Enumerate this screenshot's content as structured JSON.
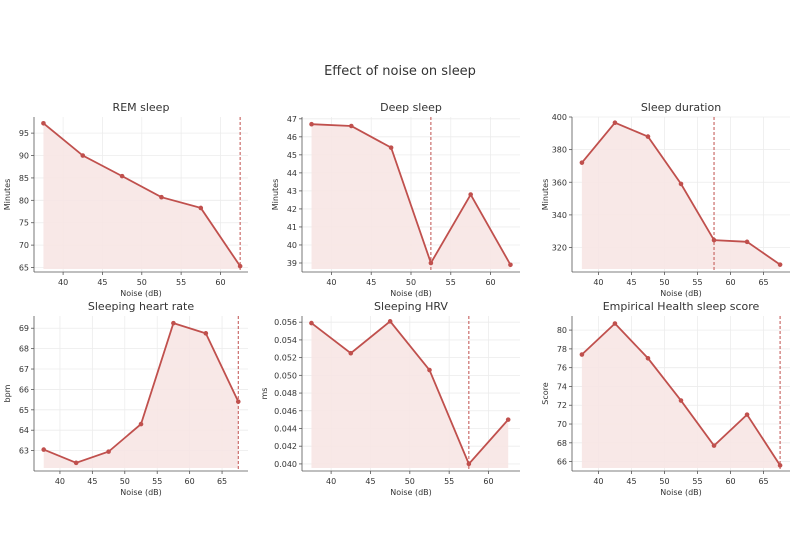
{
  "suptitle": "Effect of noise on sleep",
  "colors": {
    "line": "#c0504d",
    "fill": "#f7e6e4",
    "axis": "#555555",
    "text": "#333333"
  },
  "chart_data": [
    {
      "type": "area",
      "title": "REM sleep",
      "xlabel": "Noise (dB)",
      "ylabel": "Minutes",
      "x": [
        37.5,
        42.5,
        47.5,
        52.5,
        57.5,
        62.5
      ],
      "series": [
        {
          "values": [
            97.2,
            90.0,
            85.4,
            80.7,
            78.3,
            65.3
          ]
        }
      ],
      "threshold_x": 62.5,
      "xlim": [
        36.3,
        63.5
      ],
      "ylim": [
        64.0,
        98.6
      ],
      "xticks": [
        40,
        45,
        50,
        55,
        60
      ],
      "yticks": [
        65,
        70,
        75,
        80,
        85,
        90,
        95
      ],
      "grid": true
    },
    {
      "type": "area",
      "title": "Deep sleep",
      "xlabel": "Noise (dB)",
      "ylabel": "Minutes",
      "x": [
        37.5,
        42.5,
        47.5,
        52.5,
        57.5,
        62.5
      ],
      "series": [
        {
          "values": [
            46.7,
            46.6,
            45.4,
            39.0,
            42.8,
            38.9
          ]
        }
      ],
      "threshold_x": 52.5,
      "xlim": [
        36.3,
        63.7
      ],
      "ylim": [
        38.5,
        47.1
      ],
      "xticks": [
        40,
        45,
        50,
        55,
        60
      ],
      "yticks": [
        39,
        40,
        41,
        42,
        43,
        44,
        45,
        46,
        47
      ],
      "grid": true
    },
    {
      "type": "area",
      "title": "Sleep duration",
      "xlabel": "Noise (dB)",
      "ylabel": "Minutes",
      "x": [
        37.5,
        42.5,
        47.5,
        52.5,
        57.5,
        62.5,
        67.5
      ],
      "series": [
        {
          "values": [
            372,
            396.5,
            388,
            359,
            324.5,
            323.5,
            309.5
          ]
        }
      ],
      "threshold_x": 57.5,
      "xlim": [
        36.0,
        69.0
      ],
      "ylim": [
        305,
        400
      ],
      "xticks": [
        40,
        45,
        50,
        55,
        60,
        65
      ],
      "yticks": [
        320,
        340,
        360,
        380,
        400
      ],
      "grid": true
    },
    {
      "type": "area",
      "title": "Sleeping heart rate",
      "xlabel": "Noise (dB)",
      "ylabel": "bpm",
      "x": [
        37.5,
        42.5,
        47.5,
        52.5,
        57.5,
        62.5,
        67.5
      ],
      "series": [
        {
          "values": [
            63.05,
            62.4,
            62.95,
            64.3,
            69.25,
            68.75,
            65.4
          ]
        }
      ],
      "threshold_x": 67.5,
      "xlim": [
        36.0,
        69.0
      ],
      "ylim": [
        62.0,
        69.6
      ],
      "xticks": [
        40,
        45,
        50,
        55,
        60,
        65
      ],
      "yticks": [
        63,
        64,
        65,
        66,
        67,
        68,
        69
      ],
      "grid": true
    },
    {
      "type": "area",
      "title": "Sleeping HRV",
      "xlabel": "Noise (dB)",
      "ylabel": "ms",
      "x": [
        37.5,
        42.5,
        47.5,
        52.5,
        57.5,
        62.5
      ],
      "series": [
        {
          "values": [
            0.0559,
            0.0525,
            0.0561,
            0.0506,
            0.04,
            0.045
          ]
        }
      ],
      "threshold_x": 57.5,
      "xlim": [
        36.3,
        64.0
      ],
      "ylim": [
        0.0392,
        0.0567
      ],
      "xticks": [
        40,
        45,
        50,
        55,
        60
      ],
      "yticks": [
        0.04,
        0.042,
        0.044,
        0.046,
        0.048,
        0.05,
        0.052,
        0.054,
        0.056
      ],
      "ytick_decimals": 3,
      "grid": true
    },
    {
      "type": "area",
      "title": "Empirical Health sleep score",
      "xlabel": "Noise (dB)",
      "ylabel": "Score",
      "x": [
        37.5,
        42.5,
        47.5,
        52.5,
        57.5,
        62.5,
        67.5
      ],
      "series": [
        {
          "values": [
            77.4,
            80.7,
            77.0,
            72.5,
            67.7,
            71.0,
            65.6
          ]
        }
      ],
      "threshold_x": 67.5,
      "xlim": [
        36.0,
        69.0
      ],
      "ylim": [
        65.0,
        81.5
      ],
      "xticks": [
        40,
        45,
        50,
        55,
        60,
        65
      ],
      "yticks": [
        66,
        68,
        70,
        72,
        74,
        76,
        78,
        80
      ],
      "grid": true
    }
  ]
}
